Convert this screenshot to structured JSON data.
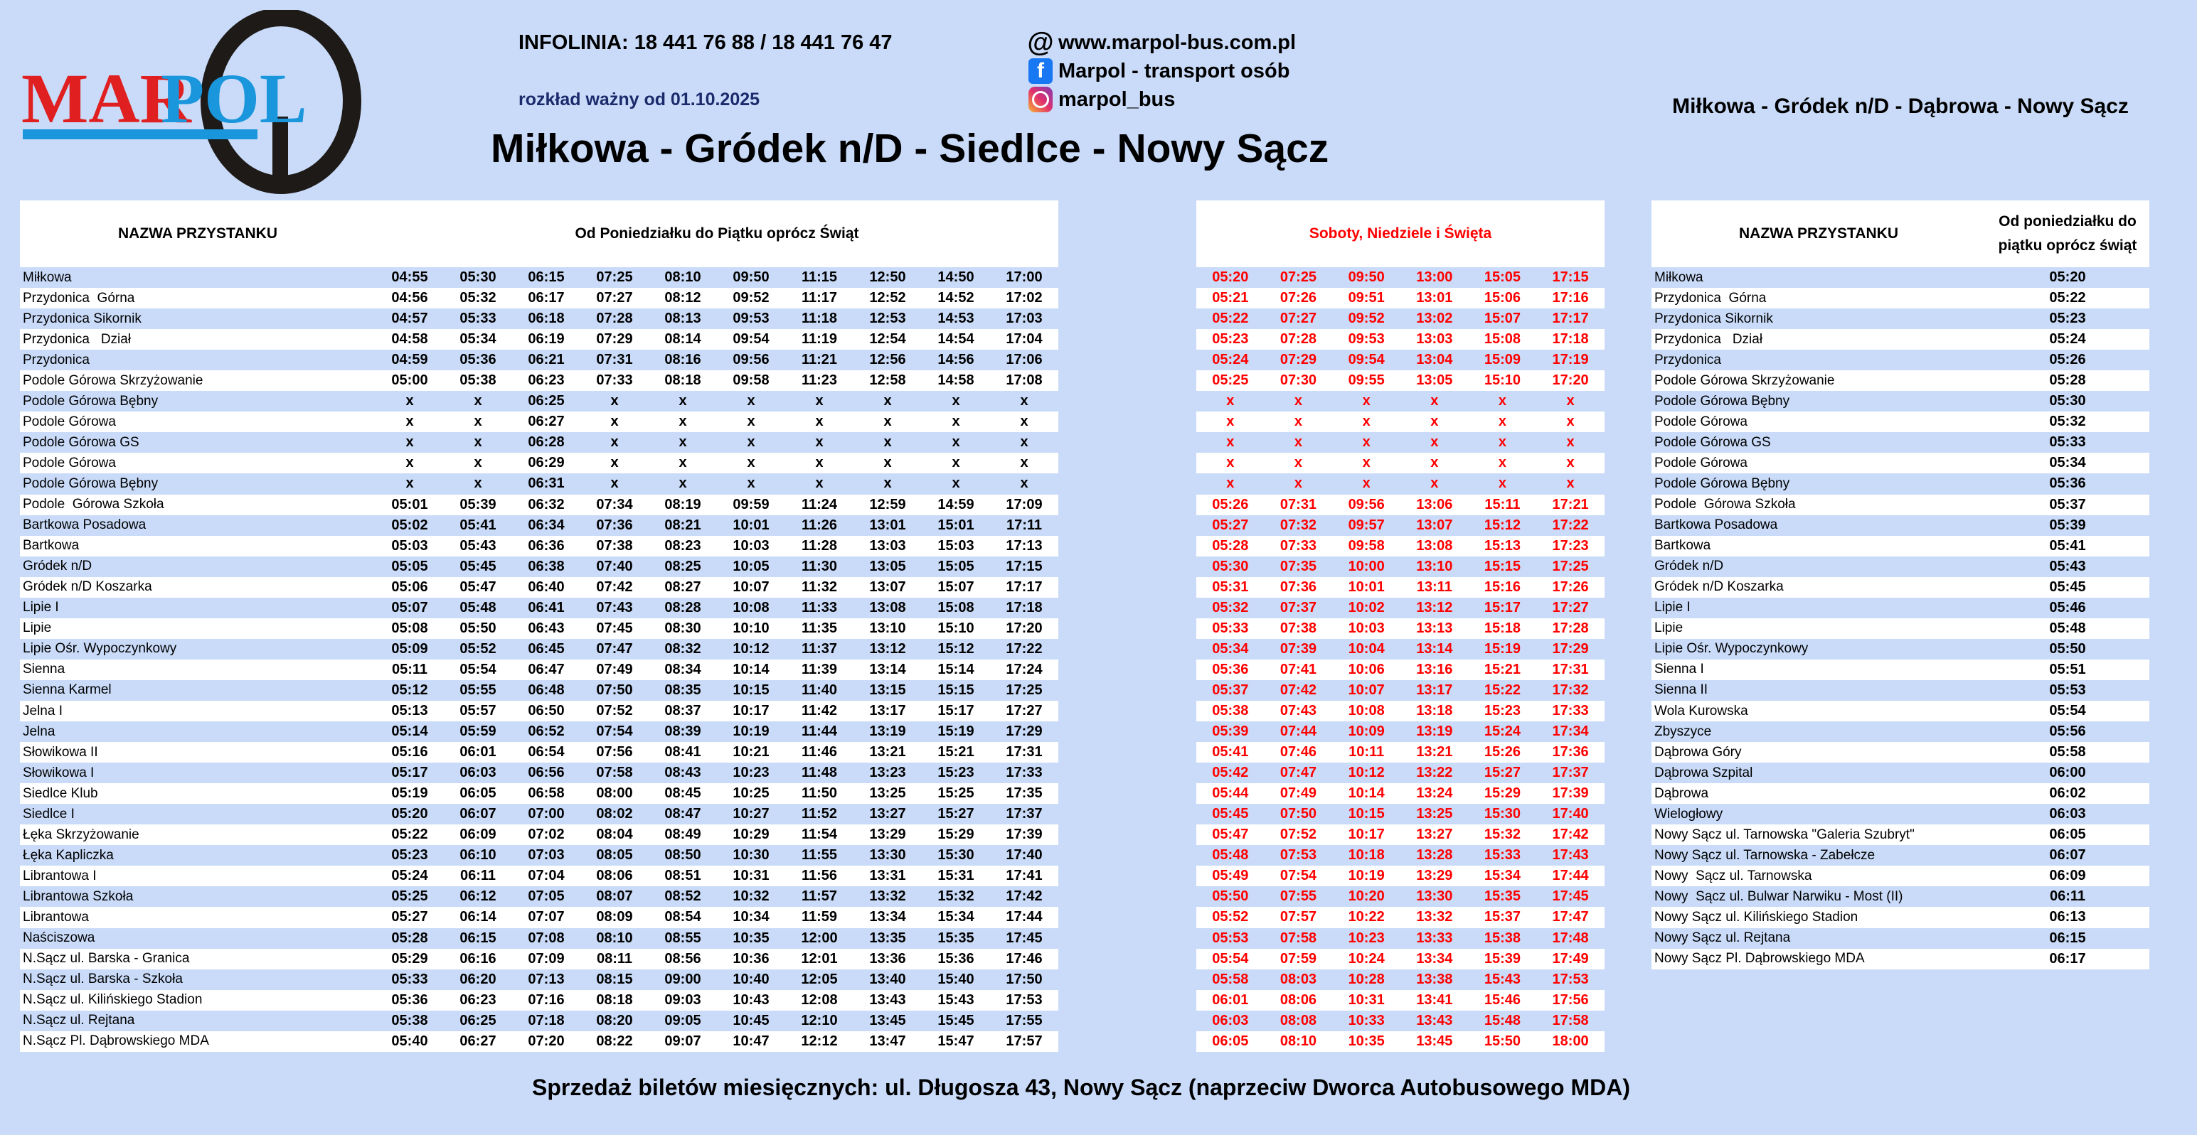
{
  "logo": {
    "text_left": "MAR",
    "text_right": "POL",
    "red": "#e02020",
    "blue": "#1a96dc"
  },
  "header": {
    "infolinia": "INFOLINIA: 18 441 76 88 / 18 441 76 47",
    "valid_from": "rozkład ważny od 01.10.2025",
    "website": "www.marpol-bus.com.pl",
    "facebook": "Marpol - transport osób",
    "instagram": "marpol_bus",
    "title": "Miłkowa - Gródek n/D - Siedlce - Nowy Sącz",
    "right_title": "Miłkowa - Gródek n/D -  Dąbrowa - Nowy Sącz"
  },
  "colors": {
    "background": "#c9dbf9",
    "weekend_text": "#ff0000"
  },
  "weekday": {
    "name_header": "NAZWA PRZYSTANKU",
    "times_header": "Od Poniedziałku do Piątku oprócz Świąt",
    "rows": [
      {
        "name": "Miłkowa",
        "times": [
          "04:55",
          "05:30",
          "06:15",
          "07:25",
          "08:10",
          "09:50",
          "11:15",
          "12:50",
          "14:50",
          "17:00"
        ]
      },
      {
        "name": "Przydonica  Górna",
        "times": [
          "04:56",
          "05:32",
          "06:17",
          "07:27",
          "08:12",
          "09:52",
          "11:17",
          "12:52",
          "14:52",
          "17:02"
        ]
      },
      {
        "name": "Przydonica Sikornik",
        "times": [
          "04:57",
          "05:33",
          "06:18",
          "07:28",
          "08:13",
          "09:53",
          "11:18",
          "12:53",
          "14:53",
          "17:03"
        ]
      },
      {
        "name": "Przydonica   Dział",
        "times": [
          "04:58",
          "05:34",
          "06:19",
          "07:29",
          "08:14",
          "09:54",
          "11:19",
          "12:54",
          "14:54",
          "17:04"
        ]
      },
      {
        "name": "Przydonica",
        "times": [
          "04:59",
          "05:36",
          "06:21",
          "07:31",
          "08:16",
          "09:56",
          "11:21",
          "12:56",
          "14:56",
          "17:06"
        ]
      },
      {
        "name": "Podole Górowa Skrzyżowanie",
        "times": [
          "05:00",
          "05:38",
          "06:23",
          "07:33",
          "08:18",
          "09:58",
          "11:23",
          "12:58",
          "14:58",
          "17:08"
        ]
      },
      {
        "name": "Podole Górowa Bębny",
        "times": [
          "x",
          "x",
          "06:25",
          "x",
          "x",
          "x",
          "x",
          "x",
          "x",
          "x"
        ]
      },
      {
        "name": "Podole Górowa",
        "times": [
          "x",
          "x",
          "06:27",
          "x",
          "x",
          "x",
          "x",
          "x",
          "x",
          "x"
        ]
      },
      {
        "name": "Podole Górowa GS",
        "times": [
          "x",
          "x",
          "06:28",
          "x",
          "x",
          "x",
          "x",
          "x",
          "x",
          "x"
        ]
      },
      {
        "name": "Podole Górowa",
        "times": [
          "x",
          "x",
          "06:29",
          "x",
          "x",
          "x",
          "x",
          "x",
          "x",
          "x"
        ]
      },
      {
        "name": "Podole Górowa Bębny",
        "times": [
          "x",
          "x",
          "06:31",
          "x",
          "x",
          "x",
          "x",
          "x",
          "x",
          "x"
        ]
      },
      {
        "name": "Podole  Górowa Szkoła",
        "times": [
          "05:01",
          "05:39",
          "06:32",
          "07:34",
          "08:19",
          "09:59",
          "11:24",
          "12:59",
          "14:59",
          "17:09"
        ]
      },
      {
        "name": "Bartkowa Posadowa",
        "times": [
          "05:02",
          "05:41",
          "06:34",
          "07:36",
          "08:21",
          "10:01",
          "11:26",
          "13:01",
          "15:01",
          "17:11"
        ]
      },
      {
        "name": "Bartkowa",
        "times": [
          "05:03",
          "05:43",
          "06:36",
          "07:38",
          "08:23",
          "10:03",
          "11:28",
          "13:03",
          "15:03",
          "17:13"
        ]
      },
      {
        "name": "Gródek n/D",
        "times": [
          "05:05",
          "05:45",
          "06:38",
          "07:40",
          "08:25",
          "10:05",
          "11:30",
          "13:05",
          "15:05",
          "17:15"
        ]
      },
      {
        "name": "Gródek n/D Koszarka",
        "times": [
          "05:06",
          "05:47",
          "06:40",
          "07:42",
          "08:27",
          "10:07",
          "11:32",
          "13:07",
          "15:07",
          "17:17"
        ]
      },
      {
        "name": "Lipie I",
        "times": [
          "05:07",
          "05:48",
          "06:41",
          "07:43",
          "08:28",
          "10:08",
          "11:33",
          "13:08",
          "15:08",
          "17:18"
        ]
      },
      {
        "name": "Lipie",
        "times": [
          "05:08",
          "05:50",
          "06:43",
          "07:45",
          "08:30",
          "10:10",
          "11:35",
          "13:10",
          "15:10",
          "17:20"
        ]
      },
      {
        "name": "Lipie Ośr. Wypoczynkowy",
        "times": [
          "05:09",
          "05:52",
          "06:45",
          "07:47",
          "08:32",
          "10:12",
          "11:37",
          "13:12",
          "15:12",
          "17:22"
        ]
      },
      {
        "name": "Sienna",
        "times": [
          "05:11",
          "05:54",
          "06:47",
          "07:49",
          "08:34",
          "10:14",
          "11:39",
          "13:14",
          "15:14",
          "17:24"
        ]
      },
      {
        "name": "Sienna Karmel",
        "times": [
          "05:12",
          "05:55",
          "06:48",
          "07:50",
          "08:35",
          "10:15",
          "11:40",
          "13:15",
          "15:15",
          "17:25"
        ]
      },
      {
        "name": "Jelna I",
        "times": [
          "05:13",
          "05:57",
          "06:50",
          "07:52",
          "08:37",
          "10:17",
          "11:42",
          "13:17",
          "15:17",
          "17:27"
        ]
      },
      {
        "name": "Jelna",
        "times": [
          "05:14",
          "05:59",
          "06:52",
          "07:54",
          "08:39",
          "10:19",
          "11:44",
          "13:19",
          "15:19",
          "17:29"
        ]
      },
      {
        "name": "Słowikowa II",
        "times": [
          "05:16",
          "06:01",
          "06:54",
          "07:56",
          "08:41",
          "10:21",
          "11:46",
          "13:21",
          "15:21",
          "17:31"
        ]
      },
      {
        "name": "Słowikowa I",
        "times": [
          "05:17",
          "06:03",
          "06:56",
          "07:58",
          "08:43",
          "10:23",
          "11:48",
          "13:23",
          "15:23",
          "17:33"
        ]
      },
      {
        "name": "Siedlce Klub",
        "times": [
          "05:19",
          "06:05",
          "06:58",
          "08:00",
          "08:45",
          "10:25",
          "11:50",
          "13:25",
          "15:25",
          "17:35"
        ]
      },
      {
        "name": "Siedlce I",
        "times": [
          "05:20",
          "06:07",
          "07:00",
          "08:02",
          "08:47",
          "10:27",
          "11:52",
          "13:27",
          "15:27",
          "17:37"
        ]
      },
      {
        "name": "Łęka Skrzyżowanie",
        "times": [
          "05:22",
          "06:09",
          "07:02",
          "08:04",
          "08:49",
          "10:29",
          "11:54",
          "13:29",
          "15:29",
          "17:39"
        ]
      },
      {
        "name": "Łęka Kapliczka",
        "times": [
          "05:23",
          "06:10",
          "07:03",
          "08:05",
          "08:50",
          "10:30",
          "11:55",
          "13:30",
          "15:30",
          "17:40"
        ]
      },
      {
        "name": "Librantowa I",
        "times": [
          "05:24",
          "06:11",
          "07:04",
          "08:06",
          "08:51",
          "10:31",
          "11:56",
          "13:31",
          "15:31",
          "17:41"
        ]
      },
      {
        "name": "Librantowa Szkoła",
        "times": [
          "05:25",
          "06:12",
          "07:05",
          "08:07",
          "08:52",
          "10:32",
          "11:57",
          "13:32",
          "15:32",
          "17:42"
        ]
      },
      {
        "name": "Librantowa",
        "times": [
          "05:27",
          "06:14",
          "07:07",
          "08:09",
          "08:54",
          "10:34",
          "11:59",
          "13:34",
          "15:34",
          "17:44"
        ]
      },
      {
        "name": "Naściszowa",
        "times": [
          "05:28",
          "06:15",
          "07:08",
          "08:10",
          "08:55",
          "10:35",
          "12:00",
          "13:35",
          "15:35",
          "17:45"
        ]
      },
      {
        "name": "N.Sącz ul. Barska - Granica",
        "times": [
          "05:29",
          "06:16",
          "07:09",
          "08:11",
          "08:56",
          "10:36",
          "12:01",
          "13:36",
          "15:36",
          "17:46"
        ]
      },
      {
        "name": "N.Sącz ul. Barska - Szkoła",
        "times": [
          "05:33",
          "06:20",
          "07:13",
          "08:15",
          "09:00",
          "10:40",
          "12:05",
          "13:40",
          "15:40",
          "17:50"
        ]
      },
      {
        "name": "N.Sącz ul. Kilińskiego Stadion",
        "times": [
          "05:36",
          "06:23",
          "07:16",
          "08:18",
          "09:03",
          "10:43",
          "12:08",
          "13:43",
          "15:43",
          "17:53"
        ]
      },
      {
        "name": "N.Sącz ul. Rejtana",
        "times": [
          "05:38",
          "06:25",
          "07:18",
          "08:20",
          "09:05",
          "10:45",
          "12:10",
          "13:45",
          "15:45",
          "17:55"
        ]
      },
      {
        "name": "N.Sącz Pl. Dąbrowskiego MDA",
        "times": [
          "05:40",
          "06:27",
          "07:20",
          "08:22",
          "09:07",
          "10:47",
          "12:12",
          "13:47",
          "15:47",
          "17:57"
        ]
      }
    ]
  },
  "weekend": {
    "header": "Soboty, Niedziele i Święta",
    "rows": [
      [
        "05:20",
        "07:25",
        "09:50",
        "13:00",
        "15:05",
        "17:15"
      ],
      [
        "05:21",
        "07:26",
        "09:51",
        "13:01",
        "15:06",
        "17:16"
      ],
      [
        "05:22",
        "07:27",
        "09:52",
        "13:02",
        "15:07",
        "17:17"
      ],
      [
        "05:23",
        "07:28",
        "09:53",
        "13:03",
        "15:08",
        "17:18"
      ],
      [
        "05:24",
        "07:29",
        "09:54",
        "13:04",
        "15:09",
        "17:19"
      ],
      [
        "05:25",
        "07:30",
        "09:55",
        "13:05",
        "15:10",
        "17:20"
      ],
      [
        "x",
        "x",
        "x",
        "x",
        "x",
        "x"
      ],
      [
        "x",
        "x",
        "x",
        "x",
        "x",
        "x"
      ],
      [
        "x",
        "x",
        "x",
        "x",
        "x",
        "x"
      ],
      [
        "x",
        "x",
        "x",
        "x",
        "x",
        "x"
      ],
      [
        "x",
        "x",
        "x",
        "x",
        "x",
        "x"
      ],
      [
        "05:26",
        "07:31",
        "09:56",
        "13:06",
        "15:11",
        "17:21"
      ],
      [
        "05:27",
        "07:32",
        "09:57",
        "13:07",
        "15:12",
        "17:22"
      ],
      [
        "05:28",
        "07:33",
        "09:58",
        "13:08",
        "15:13",
        "17:23"
      ],
      [
        "05:30",
        "07:35",
        "10:00",
        "13:10",
        "15:15",
        "17:25"
      ],
      [
        "05:31",
        "07:36",
        "10:01",
        "13:11",
        "15:16",
        "17:26"
      ],
      [
        "05:32",
        "07:37",
        "10:02",
        "13:12",
        "15:17",
        "17:27"
      ],
      [
        "05:33",
        "07:38",
        "10:03",
        "13:13",
        "15:18",
        "17:28"
      ],
      [
        "05:34",
        "07:39",
        "10:04",
        "13:14",
        "15:19",
        "17:29"
      ],
      [
        "05:36",
        "07:41",
        "10:06",
        "13:16",
        "15:21",
        "17:31"
      ],
      [
        "05:37",
        "07:42",
        "10:07",
        "13:17",
        "15:22",
        "17:32"
      ],
      [
        "05:38",
        "07:43",
        "10:08",
        "13:18",
        "15:23",
        "17:33"
      ],
      [
        "05:39",
        "07:44",
        "10:09",
        "13:19",
        "15:24",
        "17:34"
      ],
      [
        "05:41",
        "07:46",
        "10:11",
        "13:21",
        "15:26",
        "17:36"
      ],
      [
        "05:42",
        "07:47",
        "10:12",
        "13:22",
        "15:27",
        "17:37"
      ],
      [
        "05:44",
        "07:49",
        "10:14",
        "13:24",
        "15:29",
        "17:39"
      ],
      [
        "05:45",
        "07:50",
        "10:15",
        "13:25",
        "15:30",
        "17:40"
      ],
      [
        "05:47",
        "07:52",
        "10:17",
        "13:27",
        "15:32",
        "17:42"
      ],
      [
        "05:48",
        "07:53",
        "10:18",
        "13:28",
        "15:33",
        "17:43"
      ],
      [
        "05:49",
        "07:54",
        "10:19",
        "13:29",
        "15:34",
        "17:44"
      ],
      [
        "05:50",
        "07:55",
        "10:20",
        "13:30",
        "15:35",
        "17:45"
      ],
      [
        "05:52",
        "07:57",
        "10:22",
        "13:32",
        "15:37",
        "17:47"
      ],
      [
        "05:53",
        "07:58",
        "10:23",
        "13:33",
        "15:38",
        "17:48"
      ],
      [
        "05:54",
        "07:59",
        "10:24",
        "13:34",
        "15:39",
        "17:49"
      ],
      [
        "05:58",
        "08:03",
        "10:28",
        "13:38",
        "15:43",
        "17:53"
      ],
      [
        "06:01",
        "08:06",
        "10:31",
        "13:41",
        "15:46",
        "17:56"
      ],
      [
        "06:03",
        "08:08",
        "10:33",
        "13:43",
        "15:48",
        "17:58"
      ],
      [
        "06:05",
        "08:10",
        "10:35",
        "13:45",
        "15:50",
        "18:00"
      ]
    ]
  },
  "right_table": {
    "name_header": "NAZWA PRZYSTANKU",
    "times_header": "Od poniedziałku do piątku oprócz świąt",
    "rows": [
      {
        "name": "Miłkowa",
        "time": "05:20"
      },
      {
        "name": "Przydonica  Górna",
        "time": "05:22"
      },
      {
        "name": "Przydonica Sikornik",
        "time": "05:23"
      },
      {
        "name": "Przydonica   Dział",
        "time": "05:24"
      },
      {
        "name": "Przydonica",
        "time": "05:26"
      },
      {
        "name": "Podole Górowa Skrzyżowanie",
        "time": "05:28"
      },
      {
        "name": "Podole Górowa Bębny",
        "time": "05:30"
      },
      {
        "name": "Podole Górowa",
        "time": "05:32"
      },
      {
        "name": "Podole Górowa GS",
        "time": "05:33"
      },
      {
        "name": "Podole Górowa",
        "time": "05:34"
      },
      {
        "name": "Podole Górowa Bębny",
        "time": "05:36"
      },
      {
        "name": "Podole  Górowa Szkoła",
        "time": "05:37"
      },
      {
        "name": "Bartkowa Posadowa",
        "time": "05:39"
      },
      {
        "name": "Bartkowa",
        "time": "05:41"
      },
      {
        "name": "Gródek n/D",
        "time": "05:43"
      },
      {
        "name": "Gródek n/D Koszarka",
        "time": "05:45"
      },
      {
        "name": "Lipie I",
        "time": "05:46"
      },
      {
        "name": "Lipie",
        "time": "05:48"
      },
      {
        "name": "Lipie Ośr. Wypoczynkowy",
        "time": "05:50"
      },
      {
        "name": "Sienna I",
        "time": "05:51"
      },
      {
        "name": "Sienna II",
        "time": "05:53"
      },
      {
        "name": "Wola Kurowska",
        "time": "05:54"
      },
      {
        "name": "Zbyszyce",
        "time": "05:56"
      },
      {
        "name": "Dąbrowa Góry",
        "time": "05:58"
      },
      {
        "name": "Dąbrowa Szpital",
        "time": "06:00"
      },
      {
        "name": "Dąbrowa",
        "time": "06:02"
      },
      {
        "name": "Wielogłowy",
        "time": "06:03"
      },
      {
        "name": "Nowy Sącz ul. Tarnowska \"Galeria Szubryt\"",
        "time": "06:05"
      },
      {
        "name": "Nowy Sącz ul. Tarnowska - Zabełcze",
        "time": "06:07"
      },
      {
        "name": "Nowy  Sącz ul. Tarnowska",
        "time": "06:09"
      },
      {
        "name": "Nowy  Sącz ul. Bulwar Narwiku - Most (II)",
        "time": "06:11"
      },
      {
        "name": "Nowy Sącz ul. Kilińskiego Stadion",
        "time": "06:13"
      },
      {
        "name": "Nowy Sącz ul. Rejtana",
        "time": "06:15"
      },
      {
        "name": "Nowy Sącz Pl. Dąbrowskiego MDA",
        "time": "06:17"
      }
    ]
  },
  "footer": "Sprzedaż biletów miesięcznych: ul. Długosza 43, Nowy Sącz (naprzeciw Dworca Autobusowego MDA)"
}
